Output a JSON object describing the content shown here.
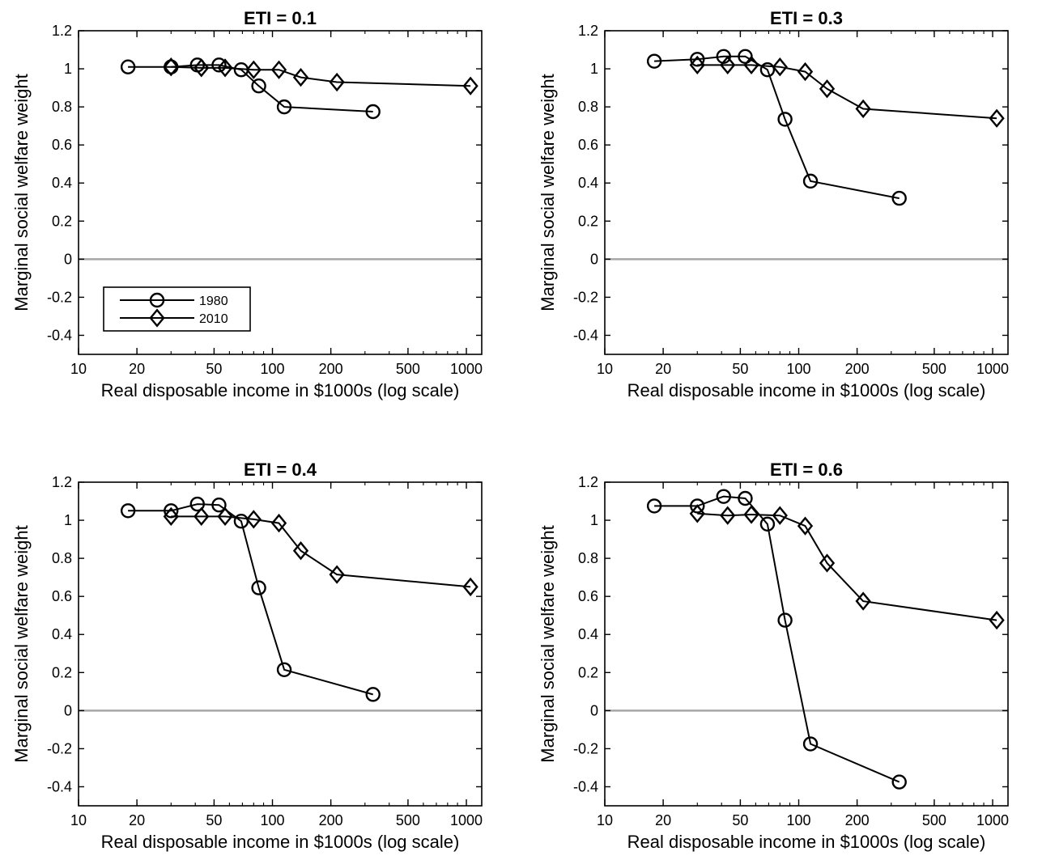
{
  "chart_data": [
    {
      "type": "line",
      "title": "ETI = 0.1",
      "xlabel": "Real disposable income in $1000s (log scale)",
      "ylabel": "Marginal social welfare weight",
      "xscale": "log",
      "xlim": [
        10,
        1200
      ],
      "ylim": [
        -0.5,
        1.2
      ],
      "xticks": [
        10,
        20,
        50,
        100,
        200,
        500,
        1000
      ],
      "yticks": [
        -0.4,
        -0.2,
        0,
        0.2,
        0.4,
        0.6,
        0.8,
        1,
        1.2
      ],
      "zero_line": true,
      "legend": "bottom-left",
      "series": [
        {
          "name": "1980",
          "marker": "circle",
          "x": [
            18,
            30,
            41,
            53,
            69,
            85,
            115,
            330
          ],
          "y": [
            1.01,
            1.01,
            1.02,
            1.02,
            0.995,
            0.91,
            0.8,
            0.775
          ]
        },
        {
          "name": "2010",
          "marker": "diamond",
          "x": [
            30,
            43,
            57,
            80,
            108,
            140,
            215,
            1050
          ],
          "y": [
            1.01,
            1.005,
            1.005,
            0.995,
            0.995,
            0.955,
            0.93,
            0.91
          ]
        }
      ]
    },
    {
      "type": "line",
      "title": "ETI = 0.3",
      "xlabel": "Real disposable income in $1000s (log scale)",
      "ylabel": "Marginal social welfare weight",
      "xscale": "log",
      "xlim": [
        10,
        1200
      ],
      "ylim": [
        -0.5,
        1.2
      ],
      "xticks": [
        10,
        20,
        50,
        100,
        200,
        500,
        1000
      ],
      "yticks": [
        -0.4,
        -0.2,
        0,
        0.2,
        0.4,
        0.6,
        0.8,
        1,
        1.2
      ],
      "zero_line": true,
      "series": [
        {
          "name": "1980",
          "marker": "circle",
          "x": [
            18,
            30,
            41,
            53,
            69,
            85,
            115,
            330
          ],
          "y": [
            1.04,
            1.05,
            1.065,
            1.065,
            0.995,
            0.735,
            0.41,
            0.32
          ]
        },
        {
          "name": "2010",
          "marker": "diamond",
          "x": [
            30,
            43,
            57,
            80,
            108,
            140,
            215,
            1050
          ],
          "y": [
            1.02,
            1.02,
            1.02,
            1.01,
            0.985,
            0.895,
            0.79,
            0.74
          ]
        }
      ]
    },
    {
      "type": "line",
      "title": "ETI = 0.4",
      "xlabel": "Real disposable income in $1000s (log scale)",
      "ylabel": "Marginal social welfare weight",
      "xscale": "log",
      "xlim": [
        10,
        1200
      ],
      "ylim": [
        -0.5,
        1.2
      ],
      "xticks": [
        10,
        20,
        50,
        100,
        200,
        500,
        1000
      ],
      "yticks": [
        -0.4,
        -0.2,
        0,
        0.2,
        0.4,
        0.6,
        0.8,
        1,
        1.2
      ],
      "zero_line": true,
      "series": [
        {
          "name": "1980",
          "marker": "circle",
          "x": [
            18,
            30,
            41,
            53,
            69,
            85,
            115,
            330
          ],
          "y": [
            1.05,
            1.05,
            1.085,
            1.08,
            0.995,
            0.645,
            0.215,
            0.085
          ]
        },
        {
          "name": "2010",
          "marker": "diamond",
          "x": [
            30,
            43,
            57,
            80,
            108,
            140,
            215,
            1050
          ],
          "y": [
            1.02,
            1.02,
            1.02,
            1.005,
            0.985,
            0.84,
            0.715,
            0.65
          ]
        }
      ]
    },
    {
      "type": "line",
      "title": "ETI = 0.6",
      "xlabel": "Real disposable income in $1000s (log scale)",
      "ylabel": "Marginal social welfare weight",
      "xscale": "log",
      "xlim": [
        10,
        1200
      ],
      "ylim": [
        -0.5,
        1.2
      ],
      "xticks": [
        10,
        20,
        50,
        100,
        200,
        500,
        1000
      ],
      "yticks": [
        -0.4,
        -0.2,
        0,
        0.2,
        0.4,
        0.6,
        0.8,
        1,
        1.2
      ],
      "zero_line": true,
      "series": [
        {
          "name": "1980",
          "marker": "circle",
          "x": [
            18,
            30,
            41,
            53,
            69,
            85,
            115,
            330
          ],
          "y": [
            1.075,
            1.075,
            1.125,
            1.115,
            0.98,
            0.475,
            -0.175,
            -0.375
          ]
        },
        {
          "name": "2010",
          "marker": "diamond",
          "x": [
            30,
            43,
            57,
            80,
            108,
            140,
            215,
            1050
          ],
          "y": [
            1.035,
            1.025,
            1.03,
            1.025,
            0.97,
            0.775,
            0.575,
            0.475
          ]
        }
      ]
    }
  ]
}
